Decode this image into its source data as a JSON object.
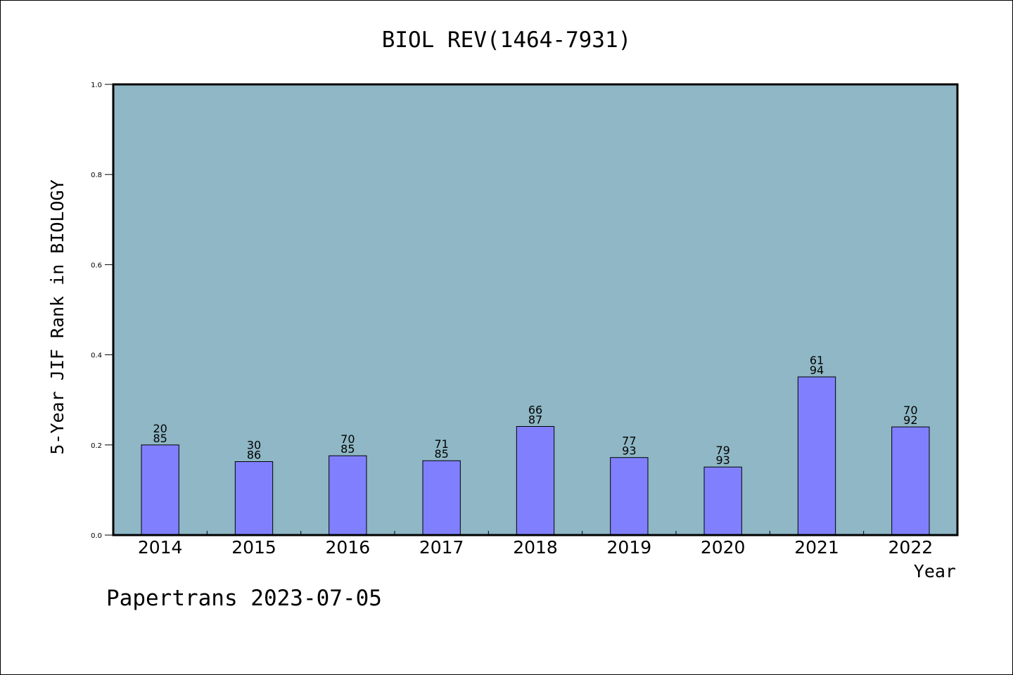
{
  "chart_data": {
    "type": "bar",
    "title": "BIOL REV(1464-7931)",
    "xlabel": "Year",
    "ylabel": "5-Year JIF Rank in BIOLOGY",
    "ylim": [
      0,
      1.0
    ],
    "yticks": [
      "0.0",
      "0.2",
      "0.4",
      "0.6",
      "0.8",
      "1.0"
    ],
    "yticks_values": [
      0,
      0.2,
      0.4,
      0.6,
      0.8,
      1.0
    ],
    "categories": [
      "2014",
      "2015",
      "2016",
      "2017",
      "2018",
      "2019",
      "2020",
      "2021",
      "2022"
    ],
    "values": [
      0.2,
      0.163,
      0.176,
      0.165,
      0.241,
      0.172,
      0.151,
      0.351,
      0.24
    ],
    "label_top": [
      "20",
      "30",
      "70",
      "71",
      "66",
      "77",
      "79",
      "61",
      "70"
    ],
    "label_bottom": [
      "85",
      "86",
      "85",
      "85",
      "87",
      "93",
      "93",
      "94",
      "92"
    ],
    "grid": false,
    "colors": {
      "plot_background": "#8fb7c5",
      "bar_fill": "#8080ff",
      "bar_stroke": "#000000"
    }
  },
  "footer": {
    "text": "Papertrans 2023-07-05"
  }
}
